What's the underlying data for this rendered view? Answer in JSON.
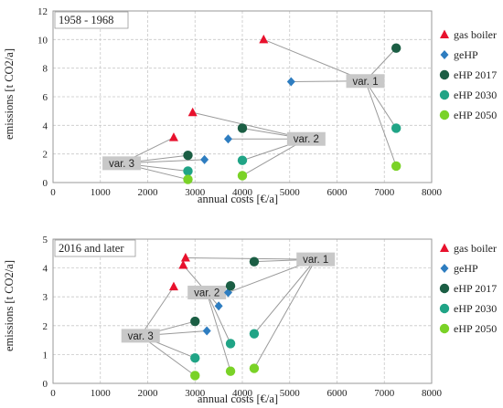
{
  "legend": {
    "items": [
      {
        "name": "gas boiler",
        "marker": "triangle",
        "color": "#e8112d"
      },
      {
        "name": "geHP",
        "marker": "diamond",
        "color": "#2e7dc0"
      },
      {
        "name": "eHP 2017",
        "marker": "circle",
        "color": "#1b5e44"
      },
      {
        "name": "eHP 2030",
        "marker": "circle",
        "color": "#20a486"
      },
      {
        "name": "eHP 2050",
        "marker": "circle",
        "color": "#7ad227"
      }
    ]
  },
  "chart_data": [
    {
      "type": "scatter",
      "title": "1958 - 1968",
      "xlabel": "annual costs [€/a]",
      "ylabel": "emissions [t CO2/a]",
      "xlim": [
        0,
        8000
      ],
      "ylim": [
        0,
        12
      ],
      "x_ticks": [
        "0",
        "1000",
        "2000",
        "3000",
        "4000",
        "5000",
        "6000",
        "7000",
        "8000"
      ],
      "y_ticks": [
        "0",
        "2",
        "4",
        "6",
        "8",
        "10",
        "12"
      ],
      "grid": true,
      "series": [
        {
          "name": "gas boiler",
          "points": [
            [
              2550,
              3.15
            ],
            [
              2950,
              4.9
            ],
            [
              4450,
              10.0
            ]
          ]
        },
        {
          "name": "geHP",
          "points": [
            [
              3200,
              1.6
            ],
            [
              3700,
              3.05
            ],
            [
              5030,
              7.05
            ]
          ]
        },
        {
          "name": "eHP 2017",
          "points": [
            [
              2850,
              1.9
            ],
            [
              4000,
              3.8
            ],
            [
              7250,
              9.4
            ]
          ]
        },
        {
          "name": "eHP 2030",
          "points": [
            [
              2850,
              0.8
            ],
            [
              4000,
              1.55
            ],
            [
              7250,
              3.8
            ]
          ]
        },
        {
          "name": "eHP 2050",
          "points": [
            [
              2850,
              0.22
            ],
            [
              4000,
              0.48
            ],
            [
              7250,
              1.15
            ]
          ]
        }
      ],
      "annotations": [
        {
          "text": "var. 1",
          "x": 6600,
          "y": 7.1,
          "targets": [
            [
              4450,
              10.0
            ],
            [
              5030,
              7.05
            ],
            [
              7250,
              9.4
            ],
            [
              7250,
              3.8
            ],
            [
              7250,
              1.15
            ]
          ]
        },
        {
          "text": "var. 2",
          "x": 5350,
          "y": 3.05,
          "targets": [
            [
              2950,
              4.9
            ],
            [
              3700,
              3.05
            ],
            [
              4000,
              3.8
            ],
            [
              4000,
              1.55
            ],
            [
              4000,
              0.48
            ]
          ]
        },
        {
          "text": "var. 3",
          "x": 1450,
          "y": 1.35,
          "targets": [
            [
              2550,
              3.15
            ],
            [
              2850,
              1.9
            ],
            [
              3200,
              1.6
            ],
            [
              2850,
              0.8
            ],
            [
              2850,
              0.22
            ]
          ]
        }
      ]
    },
    {
      "type": "scatter",
      "title": "2016 and later",
      "xlabel": "annual costs [€/a]",
      "ylabel": "emissions [t CO2/a]",
      "xlim": [
        0,
        8000
      ],
      "ylim": [
        0,
        5
      ],
      "x_ticks": [
        "0",
        "1000",
        "2000",
        "3000",
        "4000",
        "5000",
        "6000",
        "7000",
        "8000"
      ],
      "y_ticks": [
        "0",
        "1",
        "2",
        "3",
        "4",
        "5"
      ],
      "grid": true,
      "series": [
        {
          "name": "gas boiler",
          "points": [
            [
              2550,
              3.35
            ],
            [
              2750,
              4.1
            ],
            [
              2800,
              4.35
            ]
          ]
        },
        {
          "name": "geHP",
          "points": [
            [
              3250,
              1.82
            ],
            [
              3500,
              2.68
            ],
            [
              3700,
              3.15
            ]
          ]
        },
        {
          "name": "eHP 2017",
          "points": [
            [
              3000,
              2.15
            ],
            [
              3750,
              3.38
            ],
            [
              4250,
              4.22
            ]
          ]
        },
        {
          "name": "eHP 2030",
          "points": [
            [
              3000,
              0.88
            ],
            [
              3750,
              1.38
            ],
            [
              4250,
              1.72
            ]
          ]
        },
        {
          "name": "eHP 2050",
          "points": [
            [
              3000,
              0.27
            ],
            [
              3750,
              0.42
            ],
            [
              4250,
              0.52
            ]
          ]
        }
      ],
      "annotations": [
        {
          "text": "var. 1",
          "x": 5550,
          "y": 4.3,
          "targets": [
            [
              2800,
              4.35
            ],
            [
              3700,
              3.15
            ],
            [
              4250,
              4.22
            ],
            [
              4250,
              1.72
            ],
            [
              4250,
              0.52
            ]
          ]
        },
        {
          "text": "var. 2",
          "x": 3250,
          "y": 3.15,
          "targets": [
            [
              2750,
              4.1
            ],
            [
              3500,
              2.68
            ],
            [
              3750,
              3.38
            ],
            [
              3750,
              1.38
            ],
            [
              3750,
              0.42
            ]
          ]
        },
        {
          "text": "var. 3",
          "x": 1850,
          "y": 1.65,
          "targets": [
            [
              2550,
              3.35
            ],
            [
              3000,
              2.15
            ],
            [
              3250,
              1.82
            ],
            [
              3000,
              0.88
            ],
            [
              3000,
              0.27
            ]
          ]
        }
      ]
    }
  ]
}
